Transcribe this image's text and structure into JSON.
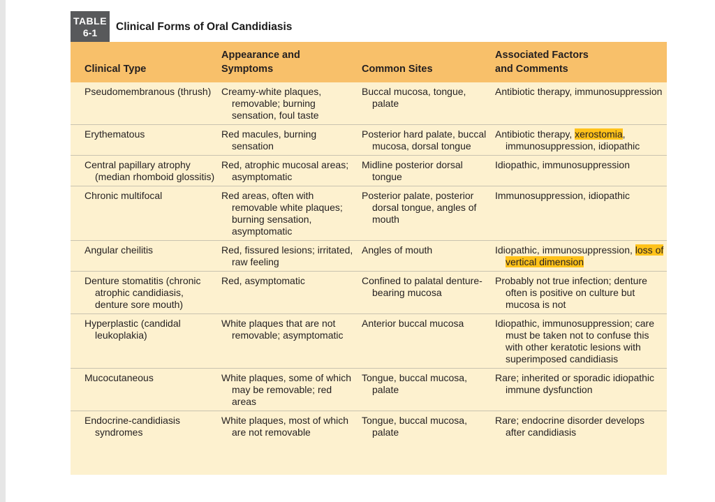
{
  "badge": {
    "line1": "TABLE",
    "line2": "6-1"
  },
  "title": "Clinical Forms of Oral Candidiasis",
  "headers": {
    "type": "Clinical Type",
    "appearance_l1": "Appearance and",
    "appearance_l2": "Symptoms",
    "sites": "Common Sites",
    "factors_l1": "Associated Factors",
    "factors_l2": "and Comments"
  },
  "rows": [
    {
      "type": "Pseudomembranous (thrush)",
      "appearance": "Creamy-white plaques, removable; burning sensation, foul taste",
      "sites": "Buccal mucosa, tongue, palate",
      "factors": "Antibiotic therapy, immunosuppression"
    },
    {
      "type": "Erythematous",
      "appearance": "Red macules, burning sensation",
      "sites": "Posterior hard palate, buccal mucosa, dorsal tongue",
      "factors_before": "Antibiotic therapy, ",
      "factors_highlight": "xerostomia",
      "factors_after": ", immunosuppression, idiopathic"
    },
    {
      "type": "Central papillary atrophy (median rhomboid glossitis)",
      "appearance": "Red, atrophic mucosal areas; asymptomatic",
      "sites": "Midline posterior dorsal tongue",
      "factors": "Idiopathic, immunosuppression"
    },
    {
      "type": "Chronic multifocal",
      "appearance": "Red areas, often with removable white plaques; burning sensation, asymptomatic",
      "sites": "Posterior palate, posterior dorsal tongue, angles of mouth",
      "factors": "Immunosuppression, idiopathic"
    },
    {
      "type": "Angular cheilitis",
      "appearance": "Red, fissured lesions; irritated, raw feeling",
      "sites": "Angles of mouth",
      "factors_before": "Idiopathic, immunosuppression, ",
      "factors_highlight": "loss of vertical dimension",
      "factors_after": ""
    },
    {
      "type": "Denture stomatitis (chronic atrophic candidiasis, denture sore mouth)",
      "appearance": "Red, asymptomatic",
      "sites": "Confined to palatal denture-bearing mucosa",
      "factors": "Probably not true infection; denture often is positive on culture but mucosa is not"
    },
    {
      "type": "Hyperplastic (candidal leukoplakia)",
      "appearance": "White plaques that are not removable; asymptomatic",
      "sites": "Anterior buccal mucosa",
      "factors": "Idiopathic, immunosuppression; care must be taken not to confuse this with other keratotic lesions with superimposed candidiasis"
    },
    {
      "type": "Mucocutaneous",
      "appearance": "White plaques, some of which may be removable; red areas",
      "sites": "Tongue, buccal mucosa, palate",
      "factors": "Rare; inherited or sporadic idiopathic immune dysfunction"
    },
    {
      "type": "Endocrine-candidiasis syndromes",
      "appearance": "White plaques, most of which are not removable",
      "sites": "Tongue, buccal mucosa, palate",
      "factors": "Rare; endocrine disorder develops after candidiasis"
    }
  ]
}
